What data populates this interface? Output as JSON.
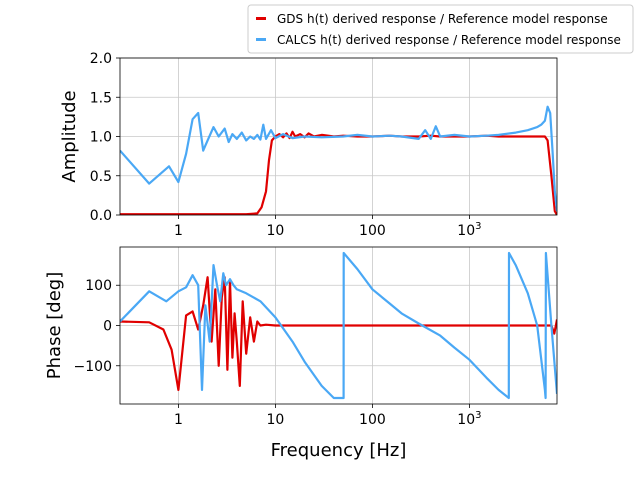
{
  "colors": {
    "gds": "#e00000",
    "calcs": "#4aa8f5",
    "grid": "#c8c8c8"
  },
  "legend": {
    "placement": "top-right",
    "entries": [
      "GDS h(t) derived response / Reference model response",
      "CALCS h(t) derived response / Reference model response"
    ]
  },
  "chart_data": [
    {
      "type": "line",
      "xscale": "log",
      "xlim": [
        0.25,
        8000
      ],
      "ylim": [
        0,
        2
      ],
      "xlabel": "",
      "ylabel": "Amplitude",
      "grid": true,
      "xticks": [
        1,
        10,
        100,
        1000
      ],
      "xtick_labels": [
        "1",
        "10",
        "100",
        "10^3"
      ],
      "yticks": [
        0,
        0.5,
        1,
        1.5,
        2
      ],
      "ytick_labels": [
        "0.0",
        "0.5",
        "1.0",
        "1.5",
        "2.0"
      ],
      "series": [
        {
          "name": "GDS h(t) derived response / Reference model response",
          "color": "#e00000",
          "x": [
            0.25,
            1,
            5,
            6.5,
            7.2,
            8,
            8.6,
            9.2,
            10,
            11,
            12,
            13,
            14,
            15,
            16,
            18,
            20,
            22,
            25,
            30,
            40,
            50,
            70,
            100,
            150,
            200,
            300,
            400,
            500,
            700,
            1000,
            1500,
            2000,
            3000,
            4000,
            5000,
            6000,
            6400,
            7000,
            7600,
            8000
          ],
          "y": [
            0.01,
            0.01,
            0.01,
            0.02,
            0.1,
            0.3,
            0.7,
            0.95,
            1.0,
            1.03,
            0.99,
            1.04,
            0.98,
            1.06,
            1.0,
            1.03,
            0.99,
            1.04,
            1.0,
            1.02,
            1.0,
            1.01,
            1.0,
            1.0,
            1.01,
            1.0,
            1.0,
            1.01,
            1.0,
            1.0,
            1.0,
            1.01,
            1.0,
            1.0,
            1.0,
            1.0,
            1.0,
            0.95,
            0.5,
            0.05,
            0.0
          ]
        },
        {
          "name": "CALCS h(t) derived response / Reference model response",
          "color": "#4aa8f5",
          "x": [
            0.25,
            0.5,
            0.8,
            1,
            1.2,
            1.4,
            1.6,
            1.8,
            2,
            2.3,
            2.6,
            3,
            3.3,
            3.6,
            4,
            4.5,
            5,
            5.5,
            6,
            6.5,
            7,
            7.5,
            8,
            9,
            10,
            12,
            15,
            20,
            30,
            50,
            70,
            100,
            150,
            200,
            300,
            350,
            400,
            450,
            500,
            700,
            1000,
            1500,
            2000,
            3000,
            4000,
            5000,
            5500,
            6000,
            6400,
            6800,
            7200,
            7600,
            8000
          ],
          "y": [
            0.82,
            0.4,
            0.62,
            0.42,
            0.78,
            1.22,
            1.3,
            0.82,
            0.95,
            1.12,
            1.0,
            1.1,
            0.93,
            1.03,
            0.97,
            1.05,
            0.95,
            1.0,
            0.97,
            1.02,
            0.96,
            1.15,
            0.97,
            1.08,
            0.98,
            1.03,
            0.98,
            1.0,
            0.99,
            1.0,
            1.02,
            1.0,
            1.01,
            1.0,
            0.97,
            1.08,
            0.97,
            1.13,
            1.0,
            1.02,
            1.0,
            1.01,
            1.02,
            1.05,
            1.08,
            1.12,
            1.15,
            1.2,
            1.38,
            1.3,
            0.8,
            0.3,
            0.05
          ]
        }
      ]
    },
    {
      "type": "line",
      "xscale": "log",
      "xlim": [
        0.25,
        8000
      ],
      "ylim": [
        -195,
        195
      ],
      "xlabel": "Frequency [Hz]",
      "ylabel": "Phase [deg]",
      "grid": true,
      "xticks": [
        1,
        10,
        100,
        1000
      ],
      "xtick_labels": [
        "1",
        "10",
        "100",
        "10^3"
      ],
      "yticks": [
        -100,
        0,
        100
      ],
      "ytick_labels": [
        "−100",
        "0",
        "100"
      ],
      "series": [
        {
          "name": "GDS h(t) derived response / Reference model response",
          "color": "#e00000",
          "x": [
            0.25,
            0.5,
            0.7,
            0.85,
            1,
            1.2,
            1.4,
            1.6,
            1.8,
            2,
            2.2,
            2.4,
            2.6,
            2.8,
            3,
            3.2,
            3.4,
            3.6,
            3.8,
            4,
            4.3,
            4.6,
            5,
            5.5,
            6,
            6.5,
            7,
            8,
            10,
            15,
            20,
            50,
            100,
            200,
            500,
            1000,
            2000,
            5000,
            7000,
            7500,
            8000
          ],
          "y": [
            10,
            8,
            -10,
            -60,
            -160,
            25,
            35,
            -10,
            50,
            120,
            -40,
            90,
            -100,
            70,
            120,
            -110,
            110,
            -80,
            30,
            -40,
            -150,
            60,
            -70,
            20,
            -40,
            10,
            0,
            2,
            0,
            0,
            0,
            0,
            0,
            0,
            0,
            0,
            0,
            0,
            0,
            -20,
            15
          ]
        },
        {
          "name": "CALCS h(t) derived response / Reference model response",
          "color": "#4aa8f5",
          "x": [
            0.25,
            0.5,
            0.75,
            1,
            1.2,
            1.4,
            1.6,
            1.75,
            1.9,
            2.1,
            2.3,
            2.5,
            2.7,
            2.9,
            3.1,
            3.4,
            3.7,
            4,
            5,
            7,
            10,
            15,
            20,
            30,
            40,
            50.5,
            50.6,
            70,
            100,
            150,
            200,
            300,
            500,
            700,
            1000,
            1500,
            2000,
            2550,
            2560,
            3000,
            4000,
            5000,
            6000,
            6100,
            6150,
            7000,
            8000
          ],
          "y": [
            10,
            85,
            60,
            85,
            95,
            125,
            100,
            -160,
            50,
            -40,
            150,
            100,
            60,
            130,
            100,
            115,
            100,
            90,
            80,
            60,
            20,
            -40,
            -90,
            -150,
            -180,
            -180,
            180,
            140,
            90,
            55,
            30,
            5,
            -25,
            -55,
            -85,
            -130,
            -160,
            -180,
            180,
            150,
            80,
            0,
            -160,
            -180,
            180,
            0,
            -170
          ]
        }
      ]
    }
  ]
}
